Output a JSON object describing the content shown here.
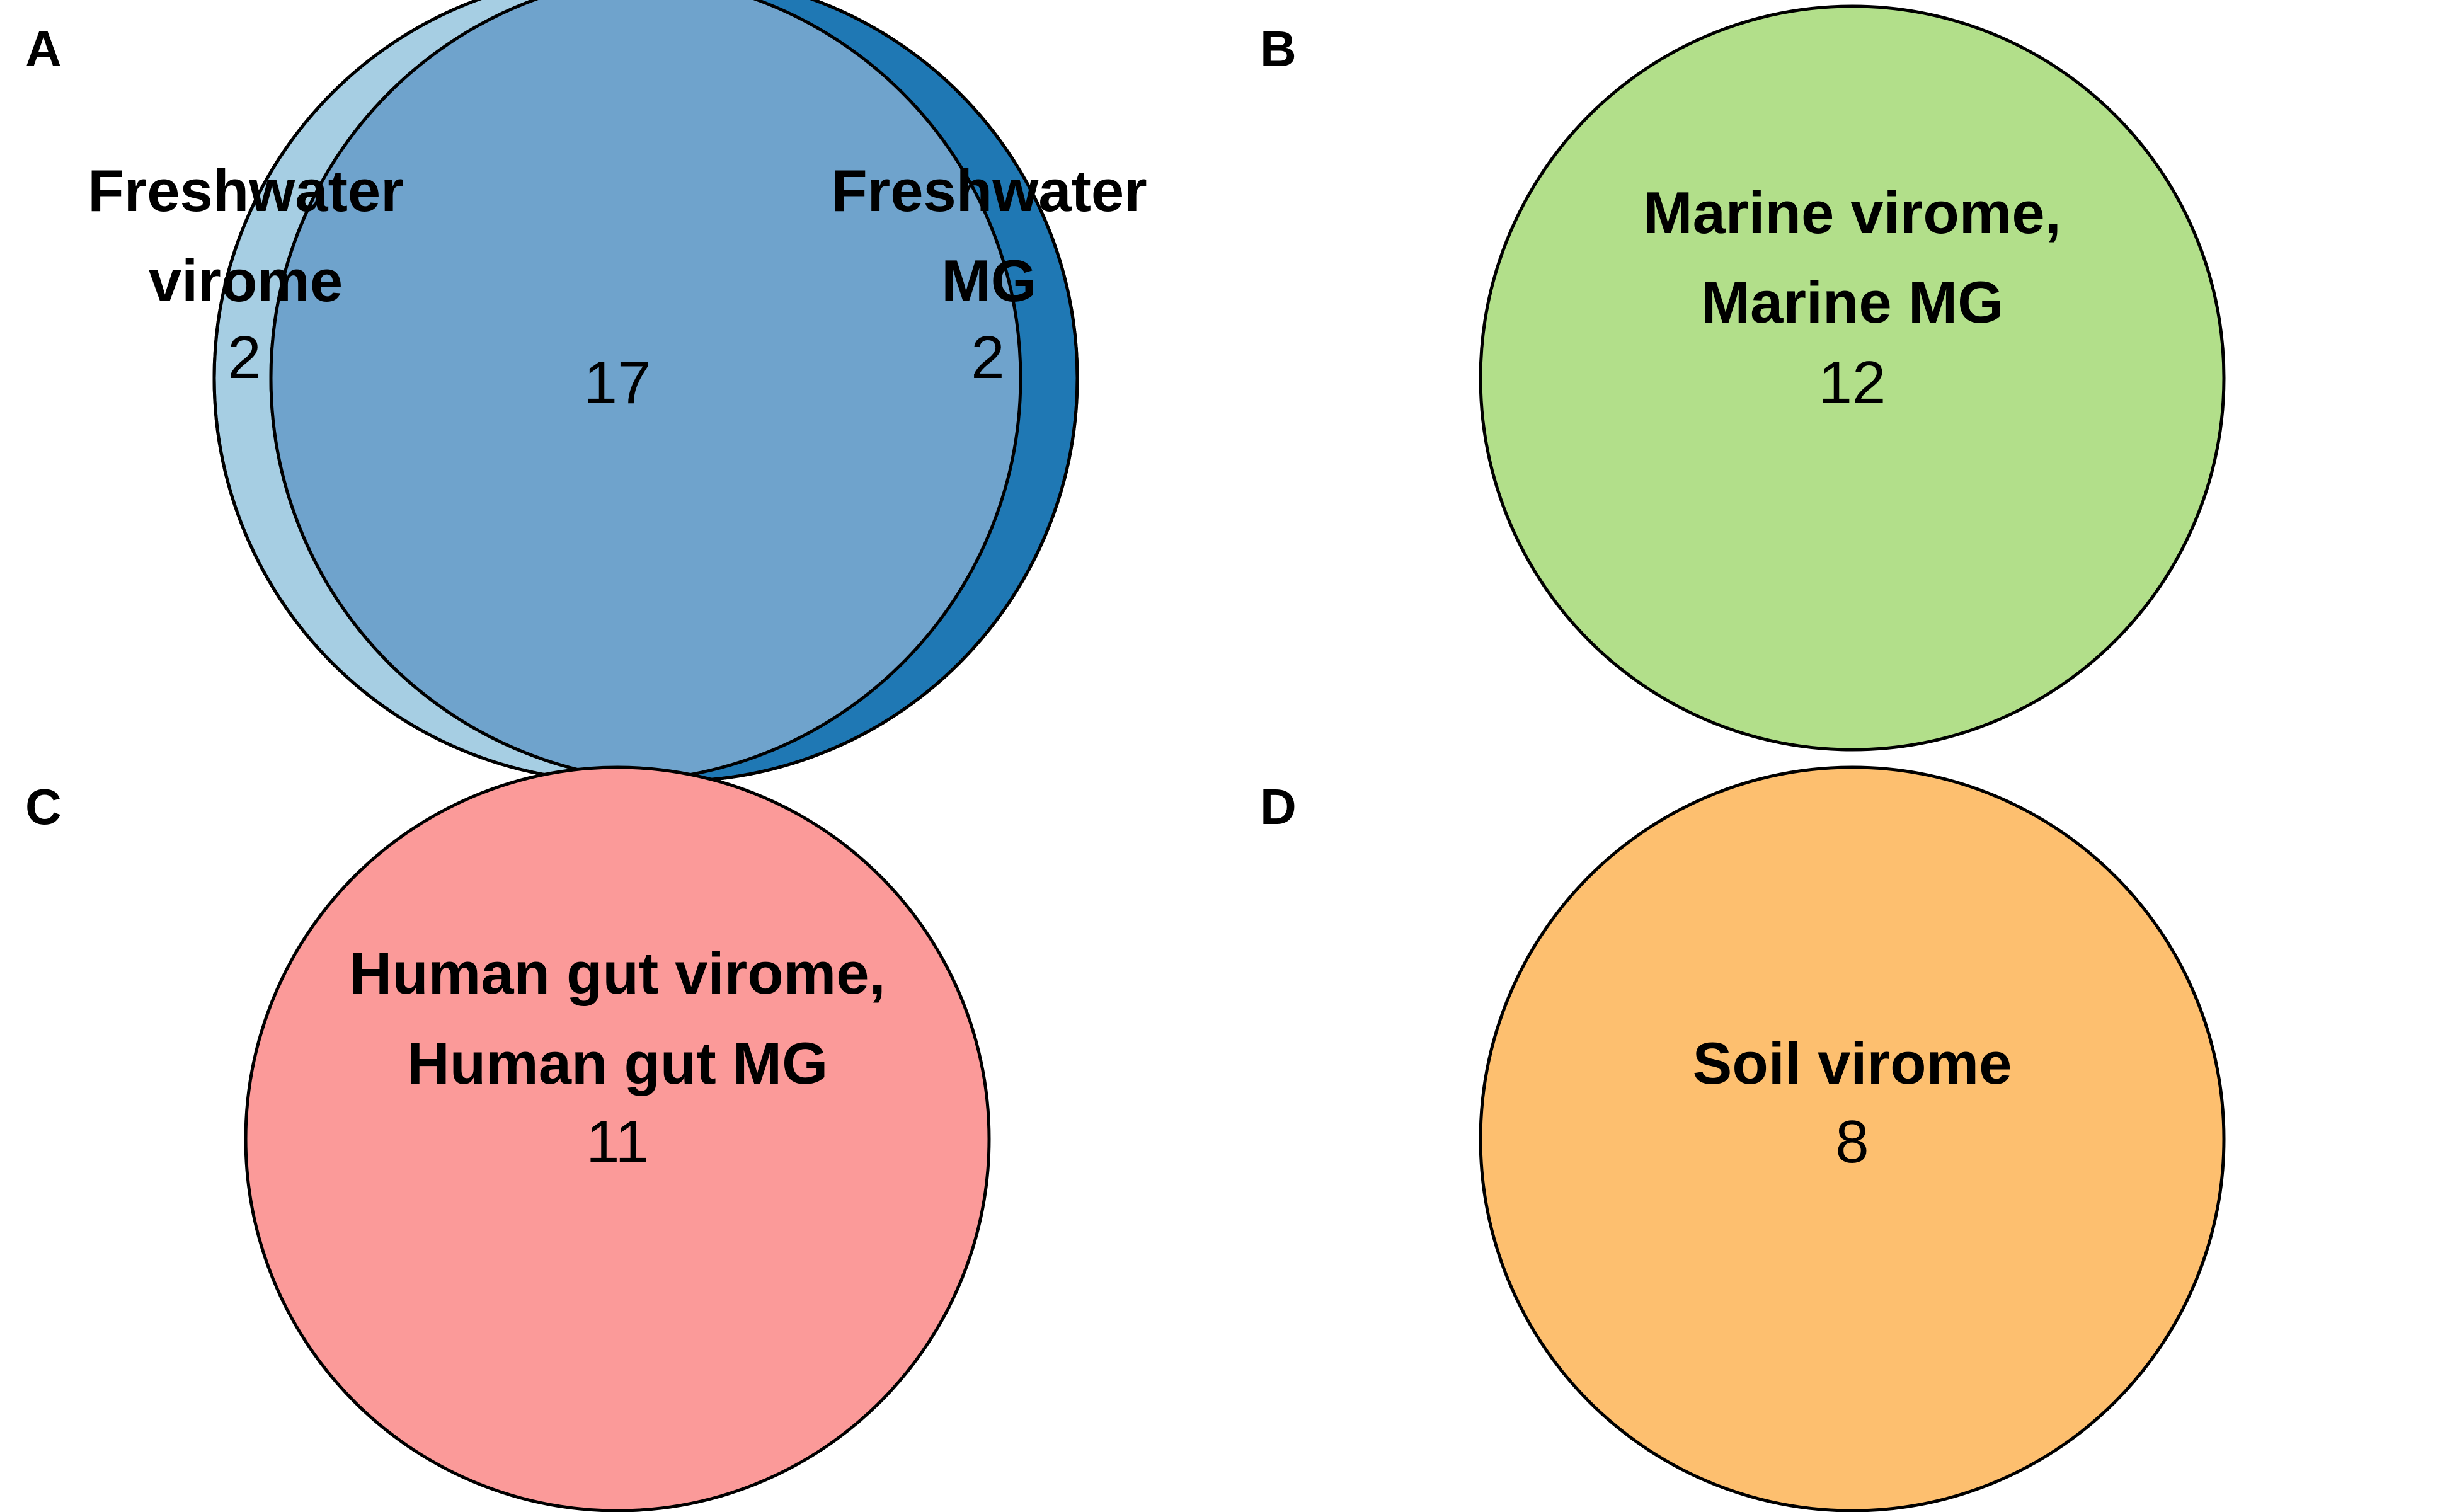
{
  "panels": {
    "a": {
      "letter": "A",
      "sets": [
        {
          "label_line1": "Freshwater",
          "label_line2": "virome",
          "color": "#A6CEE3"
        },
        {
          "label_line1": "Freshwater",
          "label_line2": "MG",
          "color": "#1F78B4"
        }
      ],
      "overlap_color": "#6FA3CC",
      "only_left": "2",
      "intersection": "17",
      "only_right": "2"
    },
    "b": {
      "letter": "B",
      "label_line1": "Marine virome,",
      "label_line2": "Marine MG",
      "count": "12",
      "color": "#B2DF8A"
    },
    "c": {
      "letter": "C",
      "label_line1": "Human gut virome,",
      "label_line2": "Human gut MG",
      "count": "11",
      "color": "#FB9A99"
    },
    "d": {
      "letter": "D",
      "label_line1": "Soil virome",
      "count": "8",
      "color": "#FDBF6F"
    }
  }
}
